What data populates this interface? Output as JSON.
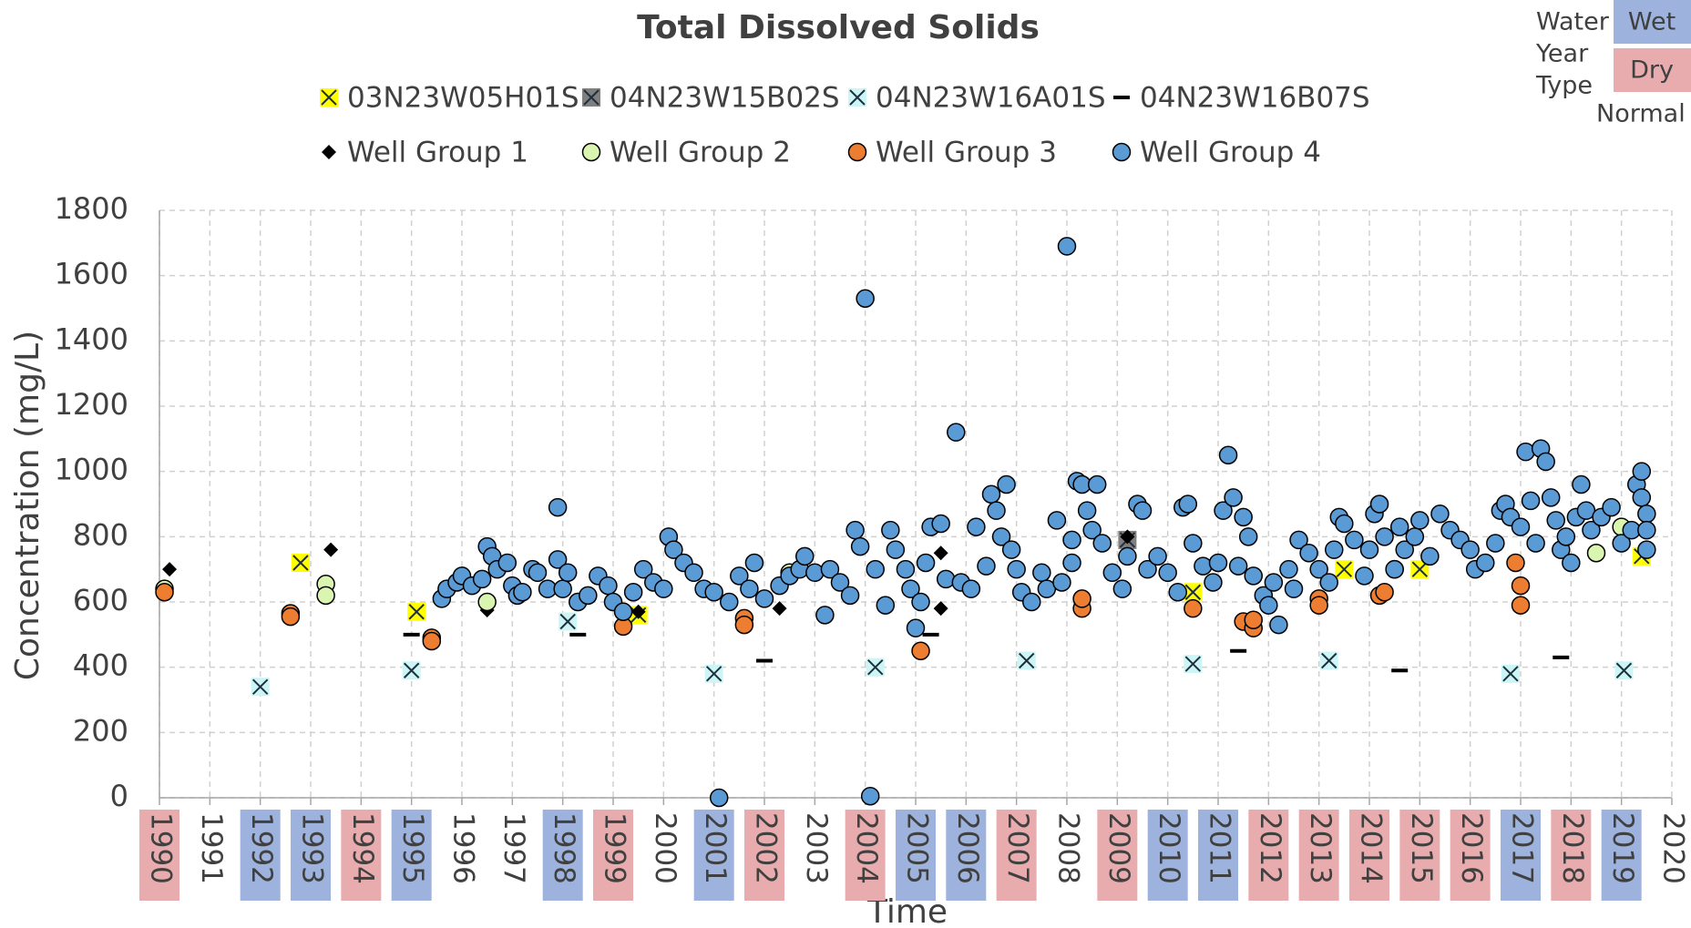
{
  "chart_data": {
    "type": "scatter",
    "title": "Total Dissolved Solids",
    "x_label": "Time",
    "y_label": "Concentration (mg/L)",
    "xlim": [
      1990,
      2020
    ],
    "ylim": [
      0,
      1800
    ],
    "xticks": [
      1990,
      1991,
      1992,
      1993,
      1994,
      1995,
      1996,
      1997,
      1998,
      1999,
      2000,
      2001,
      2002,
      2003,
      2004,
      2005,
      2006,
      2007,
      2008,
      2009,
      2010,
      2011,
      2012,
      2013,
      2014,
      2015,
      2016,
      2017,
      2018,
      2019,
      2020
    ],
    "yticks": [
      0,
      200,
      400,
      600,
      800,
      1000,
      1200,
      1400,
      1600,
      1800
    ],
    "grid": true,
    "water_year_legend": {
      "title": [
        "Water",
        "Year",
        "Type"
      ],
      "types": [
        "Wet",
        "Dry",
        "Normal"
      ],
      "colors": [
        "#9db3de",
        "#e9acae",
        null
      ]
    },
    "water_year_types": [
      "Dry",
      "Normal",
      "Wet",
      "Wet",
      "Dry",
      "Wet",
      "Normal",
      "Normal",
      "Wet",
      "Dry",
      "Normal",
      "Wet",
      "Dry",
      "Normal",
      "Dry",
      "Wet",
      "Wet",
      "Dry",
      "Normal",
      "Dry",
      "Wet",
      "Wet",
      "Dry",
      "Dry",
      "Dry",
      "Dry",
      "Dry",
      "Wet",
      "Dry",
      "Wet",
      "Normal"
    ],
    "series": [
      {
        "name": "03N23W05H01S",
        "marker": "boxed-x",
        "color": "#ffff00",
        "x": [
          1992.8,
          1995.1,
          1999.5,
          2010.5,
          2013.5,
          2015.0,
          2019.4
        ],
        "values": [
          720,
          570,
          560,
          630,
          700,
          700,
          740
        ]
      },
      {
        "name": "04N23W15B02S",
        "marker": "boxed-x",
        "color": "#7f7f7f",
        "x": [
          2009.2
        ],
        "values": [
          790
        ]
      },
      {
        "name": "04N23W16A01S",
        "marker": "boxed-x",
        "color": "#ccf5f5",
        "x": [
          1992.0,
          1995.0,
          1998.1,
          2001.0,
          2004.2,
          2007.2,
          2010.5,
          2013.2,
          2016.8,
          2019.05
        ],
        "values": [
          340,
          390,
          540,
          380,
          400,
          420,
          410,
          420,
          380,
          390
        ]
      },
      {
        "name": "04N23W16B07S",
        "marker": "dash",
        "color": "#000000",
        "x": [
          1995.0,
          1995.4,
          1998.3,
          2002.0,
          2005.3,
          2008.3,
          2011.4,
          2014.6,
          2017.8
        ],
        "values": [
          500,
          495,
          500,
          420,
          500,
          600,
          450,
          390,
          430
        ]
      },
      {
        "name": "Well Group 1",
        "marker": "diamond",
        "color": "#000000",
        "x": [
          1990.2,
          1993.4,
          1996.5,
          1999.5,
          2002.3,
          2005.5,
          2005.5,
          2009.2
        ],
        "values": [
          700,
          760,
          575,
          570,
          580,
          750,
          580,
          800
        ]
      },
      {
        "name": "Well Group 2",
        "marker": "circle",
        "color": "#d9f5b0",
        "x": [
          1990.1,
          1993.3,
          1993.3,
          1996.5,
          2002.5,
          2014.5,
          2018.5,
          2019.0
        ],
        "values": [
          640,
          655,
          620,
          600,
          690,
          700,
          750,
          830
        ]
      },
      {
        "name": "Well Group 3",
        "marker": "circle",
        "color": "#ed7d31",
        "x": [
          1990.1,
          1992.6,
          1992.6,
          1995.4,
          1995.4,
          1999.2,
          2001.6,
          2001.6,
          2005.1,
          2008.3,
          2008.3,
          2010.5,
          2011.5,
          2011.7,
          2011.7,
          2013.0,
          2013.0,
          2014.2,
          2014.3,
          2016.9,
          2017.0,
          2017.0
        ],
        "values": [
          630,
          565,
          555,
          490,
          480,
          525,
          550,
          530,
          450,
          580,
          610,
          580,
          540,
          520,
          545,
          610,
          590,
          620,
          630,
          720,
          650,
          590
        ]
      },
      {
        "name": "Well Group 4",
        "marker": "circle",
        "color": "#5b9bd5",
        "x": [
          1995.6,
          1995.7,
          1995.9,
          1996.0,
          1996.2,
          1996.4,
          1996.5,
          1996.6,
          1996.7,
          1996.9,
          1997.0,
          1997.1,
          1997.2,
          1997.4,
          1997.5,
          1997.7,
          1997.9,
          1997.9,
          1998.0,
          1998.1,
          1998.3,
          1998.5,
          1998.7,
          1998.9,
          1999.0,
          1999.2,
          1999.4,
          1999.6,
          1999.8,
          2000.0,
          2000.1,
          2000.2,
          2000.4,
          2000.6,
          2000.8,
          2001.0,
          2001.1,
          2001.3,
          2001.5,
          2001.7,
          2001.8,
          2002.0,
          2002.3,
          2002.5,
          2002.7,
          2002.8,
          2003.0,
          2003.2,
          2003.3,
          2003.5,
          2003.7,
          2003.8,
          2003.9,
          2004.0,
          2004.1,
          2004.2,
          2004.4,
          2004.5,
          2004.6,
          2004.8,
          2004.9,
          2005.0,
          2005.1,
          2005.2,
          2005.3,
          2005.5,
          2005.6,
          2005.8,
          2005.9,
          2006.1,
          2006.2,
          2006.4,
          2006.5,
          2006.6,
          2006.7,
          2006.8,
          2006.9,
          2007.0,
          2007.1,
          2007.3,
          2007.5,
          2007.6,
          2007.8,
          2007.9,
          2008.0,
          2008.1,
          2008.1,
          2008.2,
          2008.3,
          2008.4,
          2008.5,
          2008.6,
          2008.7,
          2008.9,
          2009.1,
          2009.2,
          2009.4,
          2009.5,
          2009.6,
          2009.8,
          2010.0,
          2010.2,
          2010.3,
          2010.4,
          2010.5,
          2010.7,
          2010.9,
          2011.0,
          2011.1,
          2011.2,
          2011.3,
          2011.4,
          2011.5,
          2011.6,
          2011.7,
          2011.9,
          2012.0,
          2012.1,
          2012.2,
          2012.4,
          2012.5,
          2012.6,
          2012.8,
          2013.0,
          2013.2,
          2013.3,
          2013.4,
          2013.5,
          2013.7,
          2013.9,
          2014.0,
          2014.1,
          2014.2,
          2014.3,
          2014.5,
          2014.6,
          2014.7,
          2014.9,
          2015.0,
          2015.2,
          2015.4,
          2015.6,
          2015.8,
          2016.0,
          2016.1,
          2016.3,
          2016.5,
          2016.6,
          2016.7,
          2016.8,
          2017.0,
          2017.1,
          2017.2,
          2017.3,
          2017.4,
          2017.5,
          2017.6,
          2017.7,
          2017.8,
          2017.9,
          2018.0,
          2018.1,
          2018.2,
          2018.3,
          2018.4,
          2018.6,
          2018.8,
          2019.0,
          2019.2,
          2019.3,
          2019.4,
          2019.4,
          2019.5,
          2019.5,
          2019.5
        ],
        "values": [
          610,
          640,
          660,
          680,
          650,
          670,
          770,
          740,
          700,
          720,
          650,
          620,
          630,
          700,
          690,
          640,
          730,
          890,
          640,
          690,
          600,
          620,
          680,
          650,
          600,
          570,
          630,
          700,
          660,
          640,
          800,
          760,
          720,
          690,
          640,
          630,
          0,
          600,
          680,
          640,
          720,
          610,
          650,
          680,
          700,
          740,
          690,
          560,
          700,
          660,
          620,
          820,
          770,
          1530,
          5,
          700,
          590,
          820,
          760,
          700,
          640,
          520,
          600,
          720,
          830,
          840,
          670,
          1120,
          660,
          640,
          830,
          710,
          930,
          880,
          800,
          960,
          760,
          700,
          630,
          600,
          690,
          640,
          850,
          660,
          1690,
          720,
          790,
          970,
          960,
          880,
          820,
          960,
          780,
          690,
          640,
          740,
          900,
          880,
          700,
          740,
          690,
          630,
          890,
          900,
          780,
          710,
          660,
          720,
          880,
          1050,
          920,
          710,
          860,
          800,
          680,
          620,
          590,
          660,
          530,
          700,
          640,
          790,
          750,
          700,
          660,
          760,
          860,
          840,
          790,
          680,
          760,
          870,
          900,
          800,
          700,
          830,
          760,
          800,
          850,
          740,
          870,
          820,
          790,
          760,
          700,
          720,
          780,
          880,
          900,
          860,
          830,
          1060,
          910,
          780,
          1070,
          1030,
          920,
          850,
          760,
          800,
          720,
          860,
          960,
          880,
          820,
          860,
          890,
          780,
          820,
          960,
          1000,
          920,
          870,
          760,
          820
        ]
      }
    ]
  }
}
